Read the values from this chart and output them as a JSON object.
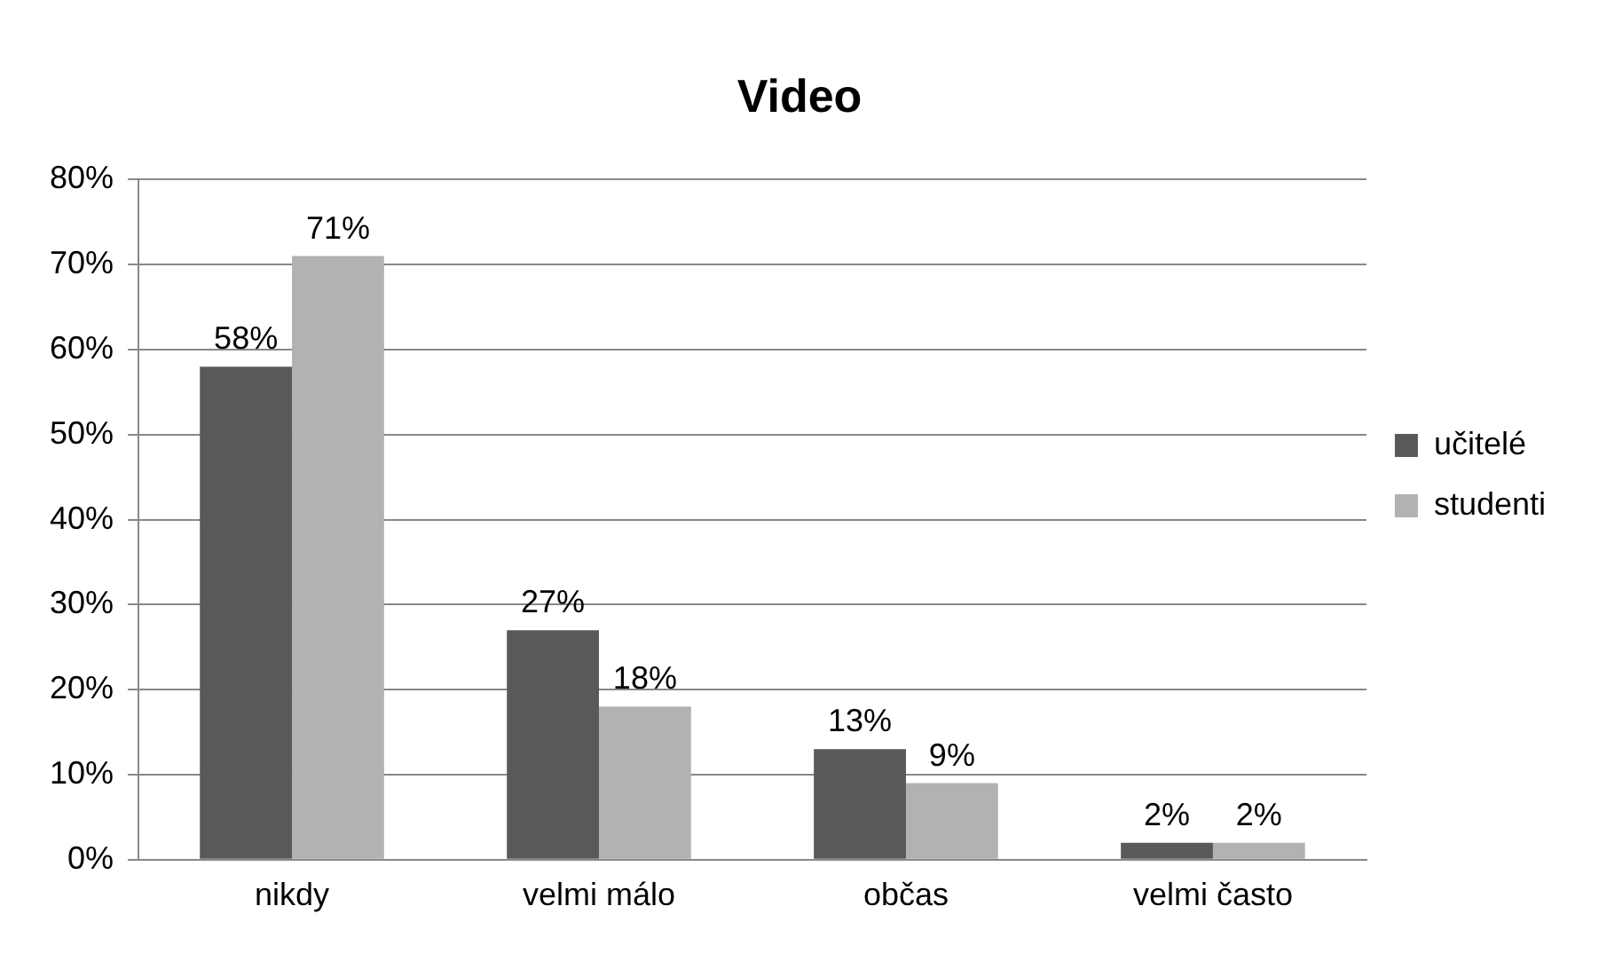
{
  "chart_data": {
    "type": "bar",
    "title": "Video",
    "categories": [
      "nikdy",
      "velmi málo",
      "občas",
      "velmi často"
    ],
    "series": [
      {
        "name": "učitelé",
        "color": "#595959",
        "values": [
          58,
          27,
          13,
          2
        ],
        "value_labels": [
          "58%",
          "27%",
          "13%",
          "2%"
        ]
      },
      {
        "name": "studenti",
        "color": "#b2b2b2",
        "values": [
          71,
          18,
          9,
          2
        ],
        "value_labels": [
          "71%",
          "18%",
          "9%",
          "2%"
        ]
      }
    ],
    "ylim": [
      0,
      80
    ],
    "yticks": [
      {
        "value": 0,
        "label": "0%"
      },
      {
        "value": 10,
        "label": "10%"
      },
      {
        "value": 20,
        "label": "20%"
      },
      {
        "value": 30,
        "label": "30%"
      },
      {
        "value": 40,
        "label": "40%"
      },
      {
        "value": 50,
        "label": "50%"
      },
      {
        "value": 60,
        "label": "60%"
      },
      {
        "value": 70,
        "label": "70%"
      },
      {
        "value": 80,
        "label": "80%"
      }
    ],
    "grid": "y",
    "legend": "right"
  }
}
